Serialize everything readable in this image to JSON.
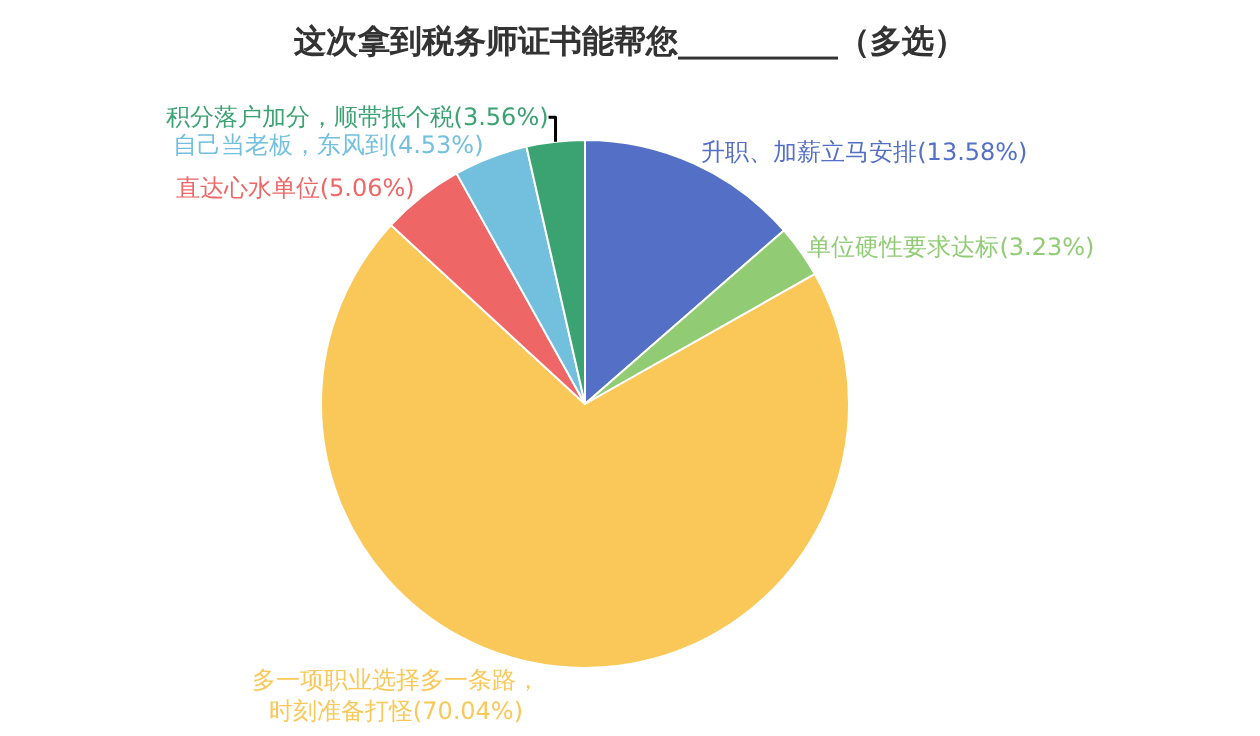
{
  "chart_data": {
    "type": "pie",
    "title": "这次拿到税务师证书能帮您__________（多选）",
    "categories": [
      "升职、加薪立马安排",
      "单位硬性要求达标",
      "多一项职业选择多一条路，时刻准备打怪",
      "直达心水单位",
      "自己当老板，东风到",
      "积分落户加分，顺带抵个税"
    ],
    "values": [
      13.58,
      3.23,
      70.04,
      5.06,
      4.53,
      3.56
    ],
    "value_labels": [
      "(13.58%)",
      "(3.23%)",
      "(70.04%)",
      "(5.06%)",
      "(4.53%)",
      "(3.56%)"
    ],
    "colors": [
      "#5470c6",
      "#91cc75",
      "#fac858",
      "#ee6666",
      "#73c0de",
      "#3ba272"
    ],
    "legend": false
  }
}
